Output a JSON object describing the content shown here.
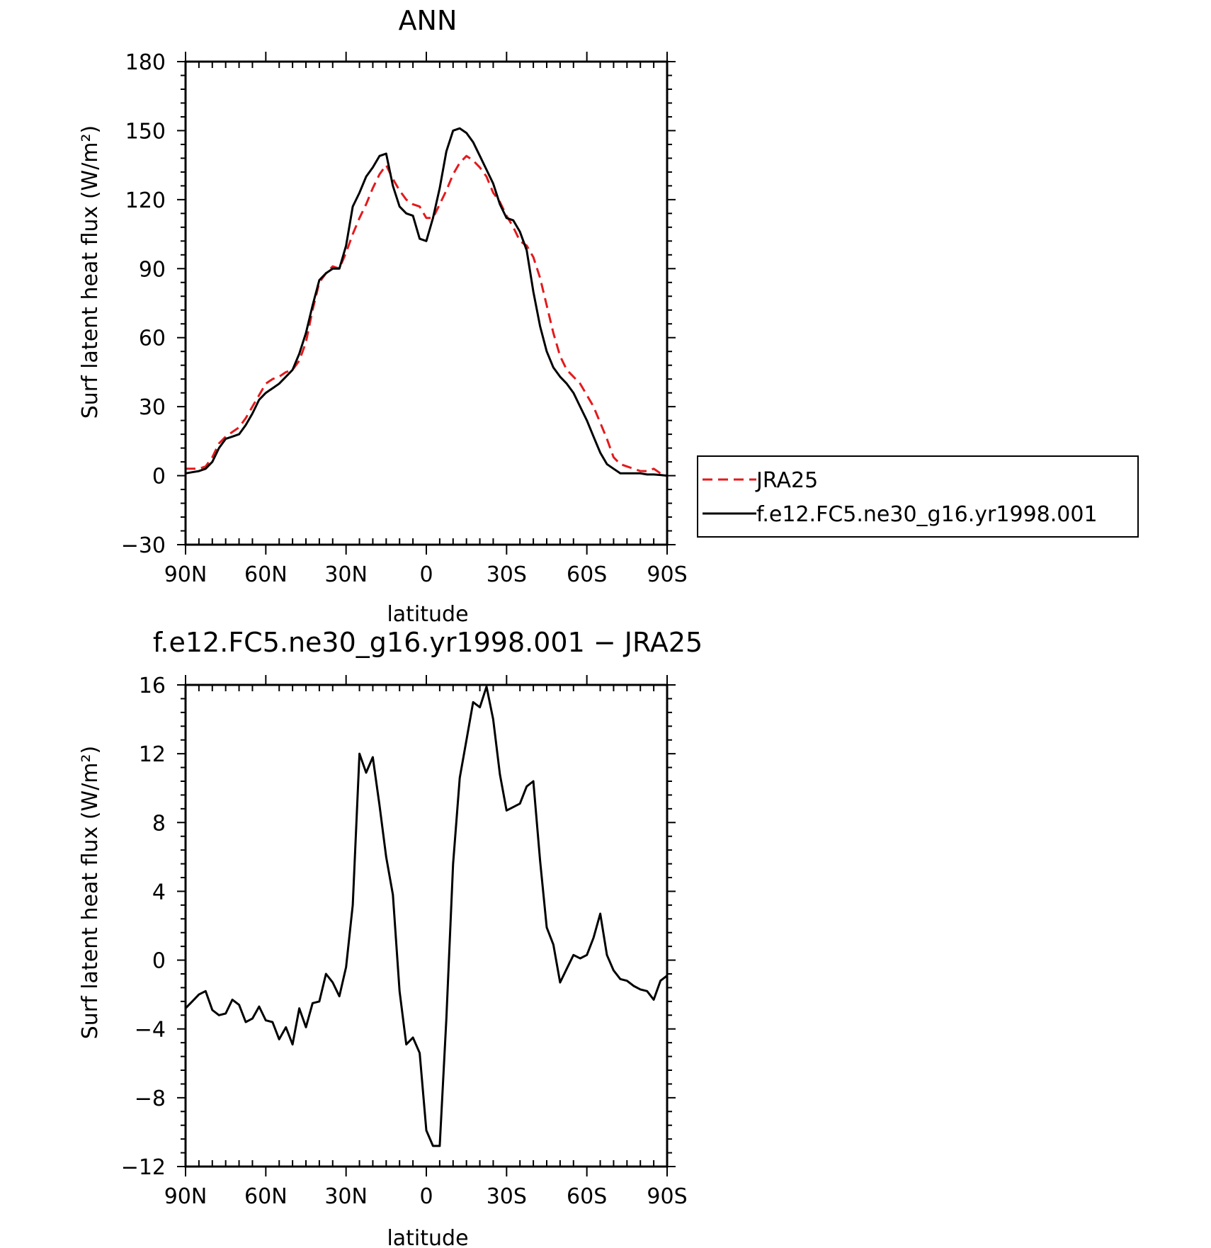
{
  "chart_data": [
    {
      "type": "line",
      "title": "ANN",
      "xlabel": "latitude",
      "ylabel": "Surf latent heat flux (W/m²)",
      "xlim": [
        -90,
        90
      ],
      "ylim": [
        -30,
        180
      ],
      "x_tick_values": [
        -90,
        -60,
        -30,
        0,
        30,
        60,
        90
      ],
      "x_tick_labels": [
        "90N",
        "60N",
        "30N",
        "0",
        "30S",
        "60S",
        "90S"
      ],
      "y_ticks": [
        -30,
        0,
        30,
        60,
        90,
        120,
        150,
        180
      ],
      "grid": false,
      "legend": "right",
      "series": [
        {
          "name": "JRA25",
          "color": "#e31a1c",
          "dash": "dashed",
          "x": [
            -90,
            -87.5,
            -85,
            -82.5,
            -80,
            -77.5,
            -75,
            -72.5,
            -70,
            -67.5,
            -65,
            -62.5,
            -60,
            -57.5,
            -55,
            -52.5,
            -50,
            -47.5,
            -45,
            -42.5,
            -40,
            -37.5,
            -35,
            -32.5,
            -30,
            -27.5,
            -25,
            -22.5,
            -20,
            -17.5,
            -15,
            -12.5,
            -10,
            -7.5,
            -5,
            -2.5,
            0,
            2.5,
            5,
            7.5,
            10,
            12.5,
            15,
            17.5,
            20,
            22.5,
            25,
            27.5,
            30,
            32.5,
            35,
            37.5,
            40,
            42.5,
            45,
            47.5,
            50,
            52.5,
            55,
            57.5,
            60,
            62.5,
            65,
            67.5,
            70,
            72.5,
            75,
            77.5,
            80,
            82.5,
            85,
            87.5,
            90
          ],
          "y": [
            3,
            3,
            3,
            4,
            8,
            14,
            17,
            19,
            21,
            25,
            30,
            35,
            40,
            42,
            43,
            45,
            46,
            50,
            58,
            72,
            84,
            88,
            91,
            90,
            97,
            105,
            112,
            118,
            125,
            131,
            135,
            129,
            124,
            120,
            118,
            117,
            112,
            112,
            118,
            124,
            131,
            136,
            139,
            137,
            134,
            130,
            123,
            119,
            113,
            108,
            102,
            100,
            95,
            86,
            74,
            62,
            52,
            46,
            43,
            40,
            35,
            30,
            23,
            16,
            8,
            5,
            4,
            3,
            2,
            2,
            3,
            1,
            0
          ]
        },
        {
          "name": "f.e12.FC5.ne30_g16.yr1998.001",
          "color": "#000000",
          "dash": "solid",
          "x": [
            -90,
            -87.5,
            -85,
            -82.5,
            -80,
            -77.5,
            -75,
            -72.5,
            -70,
            -67.5,
            -65,
            -62.5,
            -60,
            -57.5,
            -55,
            -52.5,
            -50,
            -47.5,
            -45,
            -42.5,
            -40,
            -37.5,
            -35,
            -32.5,
            -30,
            -27.5,
            -25,
            -22.5,
            -20,
            -17.5,
            -15,
            -12.5,
            -10,
            -7.5,
            -5,
            -2.5,
            0,
            2.5,
            5,
            7.5,
            10,
            12.5,
            15,
            17.5,
            20,
            22.5,
            25,
            27.5,
            30,
            32.5,
            35,
            37.5,
            40,
            42.5,
            45,
            47.5,
            50,
            52.5,
            55,
            57.5,
            60,
            62.5,
            65,
            67.5,
            70,
            72.5,
            75,
            77.5,
            80,
            82.5,
            85,
            87.5,
            90
          ],
          "y": [
            1,
            1.5,
            2,
            3,
            6,
            12,
            16,
            17,
            18,
            22,
            27,
            33,
            36,
            38,
            40,
            43,
            46,
            53,
            62,
            74,
            85,
            88,
            90,
            90,
            100,
            117,
            123,
            130,
            134,
            139,
            140,
            126,
            117,
            114,
            113,
            103,
            102,
            112,
            125,
            141,
            150,
            151,
            149,
            145,
            139,
            133,
            127,
            118,
            112,
            111,
            106,
            98,
            80,
            65,
            54,
            47,
            43,
            40,
            36,
            30,
            24,
            17,
            10,
            5,
            3,
            1,
            1,
            1,
            1,
            0.5,
            0.5,
            0.3,
            0
          ]
        }
      ]
    },
    {
      "type": "line",
      "title": "f.e12.FC5.ne30_g16.yr1998.001 − JRA25",
      "xlabel": "latitude",
      "ylabel": "Surf latent heat flux (W/m²)",
      "xlim": [
        -90,
        90
      ],
      "ylim": [
        -12,
        16
      ],
      "x_tick_values": [
        -90,
        -60,
        -30,
        0,
        30,
        60,
        90
      ],
      "x_tick_labels": [
        "90N",
        "60N",
        "30N",
        "0",
        "30S",
        "60S",
        "90S"
      ],
      "y_ticks": [
        -12,
        -8,
        -4,
        0,
        4,
        8,
        12,
        16
      ],
      "y_tick_labels": [
        "−12",
        "−8",
        "−4",
        "0",
        "4",
        "8",
        "12",
        "16"
      ],
      "grid": false,
      "series": [
        {
          "color": "#000000",
          "dash": "solid",
          "x": [
            -90,
            -87.5,
            -85,
            -82.5,
            -80,
            -77.5,
            -75,
            -72.5,
            -70,
            -67.5,
            -65,
            -62.5,
            -60,
            -57.5,
            -55,
            -52.5,
            -50,
            -47.5,
            -45,
            -42.5,
            -40,
            -37.5,
            -35,
            -32.5,
            -30,
            -27.5,
            -25,
            -22.5,
            -20,
            -17.5,
            -15,
            -12.5,
            -10,
            -7.5,
            -5,
            -2.5,
            0,
            2.5,
            5,
            7.5,
            10,
            12.5,
            15,
            17.5,
            20,
            22.5,
            25,
            27.5,
            30,
            32.5,
            35,
            37.5,
            40,
            42.5,
            45,
            47.5,
            50,
            52.5,
            55,
            57.5,
            60,
            62.5,
            65,
            67.5,
            70,
            72.5,
            75,
            77.5,
            80,
            82.5,
            85,
            87.5,
            90
          ],
          "y": [
            -2.8,
            -2.4,
            -2.0,
            -1.8,
            -2.9,
            -3.2,
            -3.1,
            -2.3,
            -2.6,
            -3.6,
            -3.4,
            -2.7,
            -3.5,
            -3.6,
            -4.6,
            -3.9,
            -4.9,
            -2.8,
            -3.9,
            -2.5,
            -2.4,
            -0.8,
            -1.3,
            -2.1,
            -0.4,
            3.2,
            12.0,
            10.9,
            11.8,
            9.0,
            6.0,
            3.8,
            -1.8,
            -4.9,
            -4.5,
            -5.4,
            -9.9,
            -10.8,
            -10.8,
            -3.4,
            5.6,
            10.6,
            12.8,
            15.0,
            14.7,
            15.9,
            14.0,
            10.8,
            8.7,
            8.9,
            9.1,
            10.1,
            10.4,
            5.8,
            1.9,
            0.9,
            -1.3,
            -0.5,
            0.3,
            0.1,
            0.3,
            1.3,
            2.7,
            0.3,
            -0.6,
            -1.1,
            -1.2,
            -1.5,
            -1.7,
            -1.8,
            -2.3,
            -1.2,
            -0.9
          ]
        }
      ]
    }
  ]
}
